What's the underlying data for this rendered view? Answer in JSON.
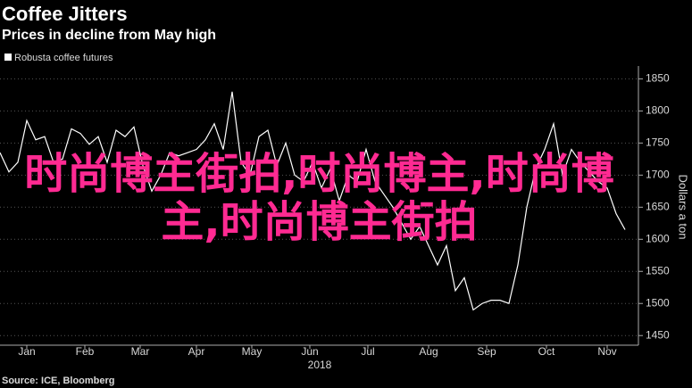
{
  "chart_data": {
    "type": "line",
    "title": "Coffee Jitters",
    "subtitle": "Prices in decline from May high",
    "source": "Source: ICE, Bloomberg",
    "y_label": "Dollars a ton",
    "x_label": "2018",
    "annotation": "时尚博主街拍,时尚博主,时尚博主,时尚博主街拍",
    "series": [
      {
        "name": "Robusta coffee futures",
        "color": "#ffffff",
        "values": [
          1735,
          1705,
          1720,
          1785,
          1755,
          1760,
          1720,
          1725,
          1772,
          1765,
          1748,
          1760,
          1720,
          1770,
          1760,
          1775,
          1715,
          1675,
          1700,
          1735,
          1730,
          1735,
          1740,
          1755,
          1780,
          1740,
          1830,
          1720,
          1700,
          1760,
          1770,
          1715,
          1750,
          1700,
          1690,
          1720,
          1680,
          1710,
          1660,
          1700,
          1690,
          1740,
          1690,
          1670,
          1650,
          1625,
          1600,
          1620,
          1590,
          1560,
          1590,
          1520,
          1540,
          1490,
          1500,
          1505,
          1505,
          1500,
          1560,
          1650,
          1710,
          1740,
          1780,
          1700,
          1740,
          1720,
          1705,
          1690,
          1680,
          1640,
          1615
        ]
      }
    ],
    "xlim": [
      0,
      71.5
    ],
    "xticks": [
      {
        "value": 3,
        "label": "Jan"
      },
      {
        "value": 9.5,
        "label": "Feb"
      },
      {
        "value": 15.7,
        "label": "Mar"
      },
      {
        "value": 22,
        "label": "Apr"
      },
      {
        "value": 28.2,
        "label": "May"
      },
      {
        "value": 34.7,
        "label": "Jun"
      },
      {
        "value": 41.2,
        "label": "Jul"
      },
      {
        "value": 48,
        "label": "Aug"
      },
      {
        "value": 54.5,
        "label": "Sep"
      },
      {
        "value": 61.2,
        "label": "Oct"
      },
      {
        "value": 68,
        "label": "Nov"
      }
    ],
    "ylim": [
      1435,
      1870
    ],
    "yticks": [
      1450,
      1500,
      1550,
      1600,
      1650,
      1700,
      1750,
      1800,
      1850
    ],
    "grid": true
  }
}
